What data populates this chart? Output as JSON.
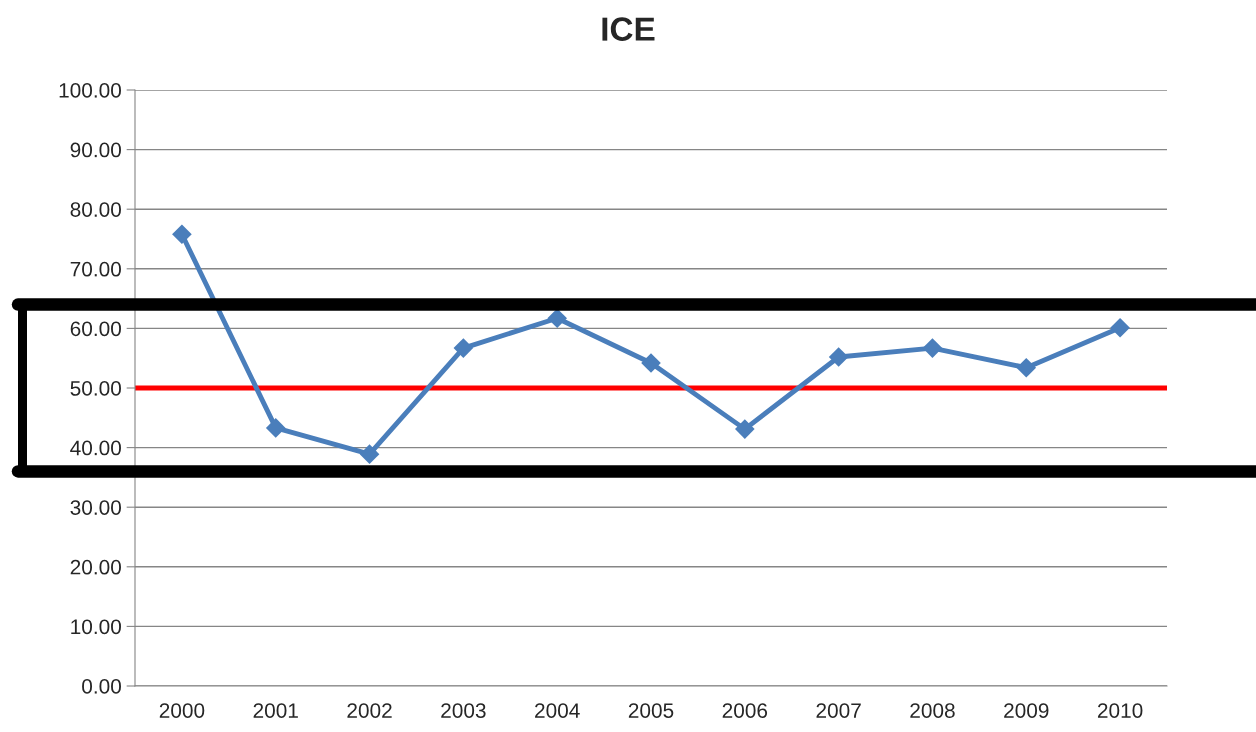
{
  "chart_data": {
    "type": "line",
    "title": "ICE",
    "categories": [
      "2000",
      "2001",
      "2002",
      "2003",
      "2004",
      "2005",
      "2006",
      "2007",
      "2008",
      "2009",
      "2010"
    ],
    "series": [
      {
        "color": "#4a7ebb",
        "values": [
          75.8,
          43.3,
          38.9,
          56.7,
          61.7,
          54.2,
          43.1,
          55.2,
          56.7,
          53.4,
          60.1
        ]
      }
    ],
    "ylim": [
      0,
      100
    ],
    "yticks": [
      {
        "value": 0,
        "label": "0.00"
      },
      {
        "value": 10,
        "label": "10.00"
      },
      {
        "value": 20,
        "label": "20.00"
      },
      {
        "value": 30,
        "label": "30.00"
      },
      {
        "value": 40,
        "label": "40.00"
      },
      {
        "value": 50,
        "label": "50.00"
      },
      {
        "value": 60,
        "label": "60.00"
      },
      {
        "value": 70,
        "label": "70.00"
      },
      {
        "value": 80,
        "label": "80.00"
      },
      {
        "value": 90,
        "label": "90.00"
      },
      {
        "value": 100,
        "label": "100.00"
      }
    ],
    "ref_lines": [
      {
        "axis": "y",
        "value": 50,
        "color": "#ff0000"
      },
      {
        "axis": "y",
        "value": 64,
        "color": "#000000",
        "line_style": "solid"
      },
      {
        "axis": "y",
        "value": 36,
        "color": "#000000",
        "line_style": "solid"
      }
    ],
    "grid": "y",
    "marker": "diamond",
    "line_style": "solid",
    "legend": false
  }
}
